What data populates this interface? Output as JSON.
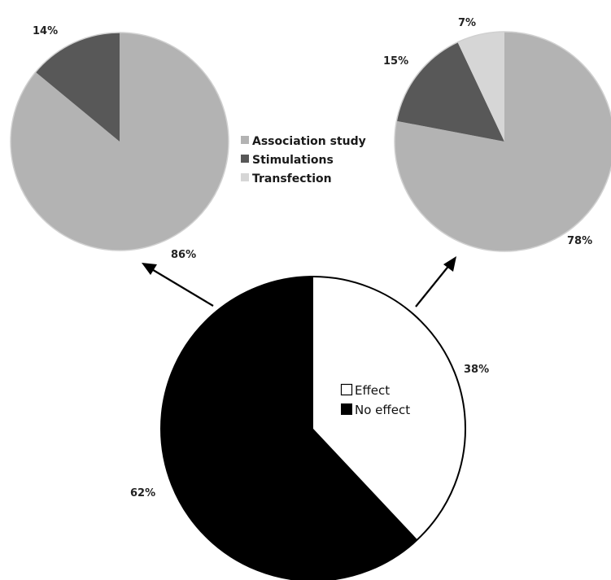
{
  "chart_data": [
    {
      "type": "pie",
      "slices": [
        {
          "name": "Association study",
          "value": 86,
          "label": "86%",
          "color": "#b3b3b3"
        },
        {
          "name": "Stimulations",
          "value": 14,
          "label": "14%",
          "color": "#585858"
        }
      ]
    },
    {
      "type": "pie",
      "slices": [
        {
          "name": "Association study",
          "value": 78,
          "label": "78%",
          "color": "#b3b3b3"
        },
        {
          "name": "Stimulations",
          "value": 15,
          "label": "15%",
          "color": "#585858"
        },
        {
          "name": "Transfection",
          "value": 7,
          "label": "7%",
          "color": "#d6d6d6"
        }
      ]
    },
    {
      "type": "pie",
      "slices": [
        {
          "name": "Effect",
          "value": 38,
          "label": "38%",
          "color": "#ffffff"
        },
        {
          "name": "No effect",
          "value": 62,
          "label": "62%",
          "color": "#000000"
        }
      ]
    }
  ],
  "legend_top": [
    "Association study",
    "Stimulations",
    "Transfection"
  ],
  "legend_bottom": [
    "Effect",
    "No effect"
  ]
}
